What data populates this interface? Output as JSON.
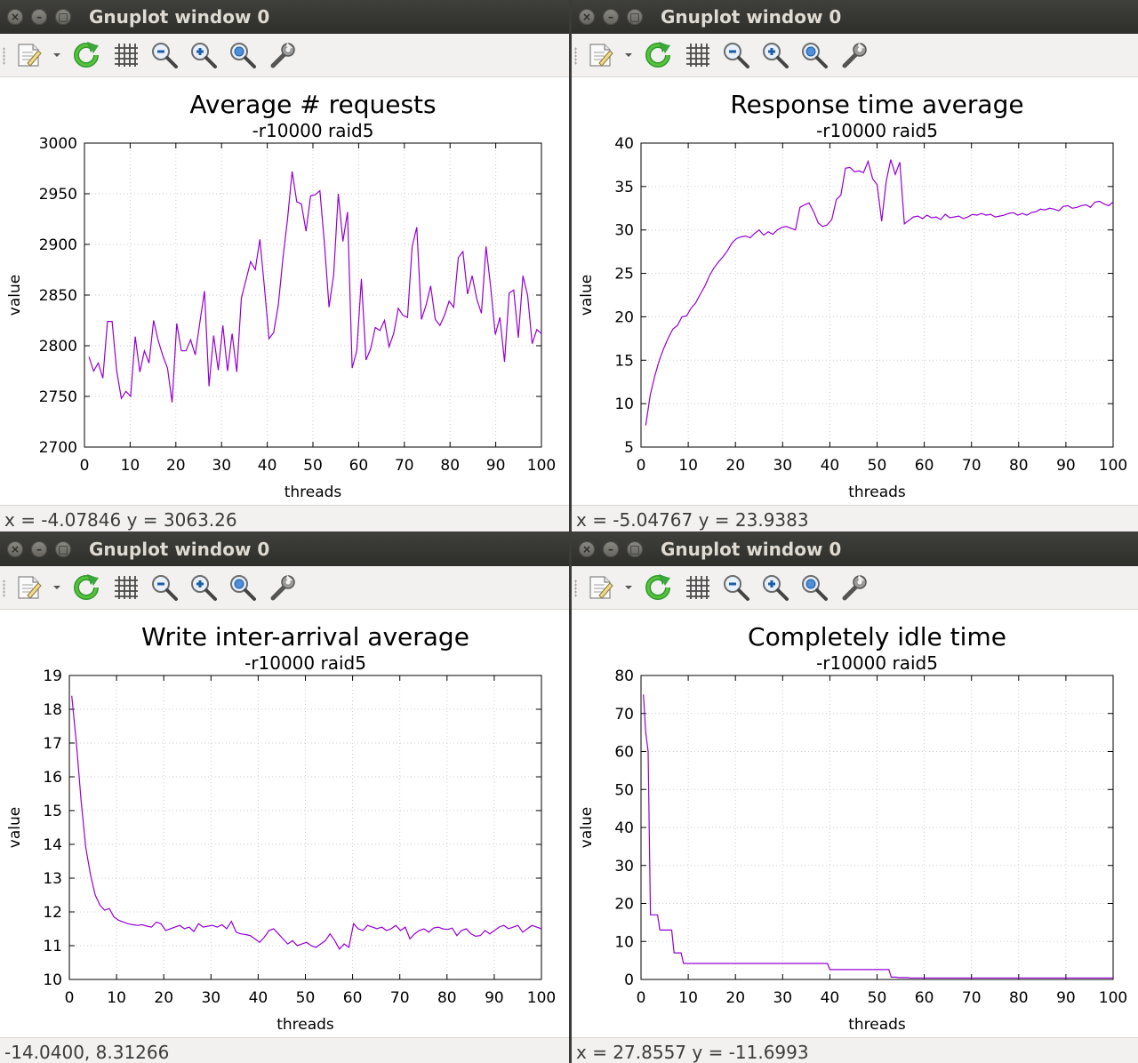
{
  "colors": {
    "series": "#9400d3",
    "grid": "#cfcfcf",
    "titlebar": "#3a3a37",
    "toolbar": "#f2f1f0"
  },
  "toolbar_icons": [
    "export-icon",
    "dropdown-arrow-icon",
    "replot-icon",
    "grid-icon",
    "zoom-out-icon",
    "zoom-in-icon",
    "zoom-reset-icon",
    "settings-icon"
  ],
  "windows": [
    {
      "title": "Gnuplot window 0",
      "status": "x = -4.07846 y = 3063.26",
      "chart_data": {
        "type": "line",
        "title": "Average # requests",
        "subtitle": "-r10000 raid5",
        "xlabel": "threads",
        "ylabel": "value",
        "xlim": [
          0,
          100
        ],
        "ylim": [
          2700,
          3000
        ],
        "xticks": [
          "0",
          "10",
          "20",
          "30",
          "40",
          "50",
          "60",
          "70",
          "80",
          "90",
          "100"
        ],
        "yticks": [
          "2700",
          "2750",
          "2800",
          "2850",
          "2900",
          "2950",
          "3000"
        ],
        "grid": true,
        "x_start": 1,
        "series": [
          {
            "values": [
              2789,
              2775,
              2783,
              2768,
              2824,
              2824,
              2775,
              2748,
              2755,
              2750,
              2809,
              2774,
              2795,
              2783,
              2825,
              2805,
              2790,
              2778,
              2744,
              2822,
              2795,
              2795,
              2806,
              2791,
              2823,
              2854,
              2760,
              2810,
              2776,
              2820,
              2775,
              2812,
              2774,
              2847,
              2865,
              2883,
              2875,
              2905,
              2857,
              2807,
              2813,
              2840,
              2886,
              2925,
              2972,
              2942,
              2940,
              2913,
              2948,
              2949,
              2953,
              2900,
              2838,
              2870,
              2950,
              2903,
              2932,
              2778,
              2795,
              2866,
              2786,
              2797,
              2818,
              2815,
              2825,
              2799,
              2812,
              2837,
              2830,
              2828,
              2898,
              2917,
              2826,
              2840,
              2859,
              2826,
              2820,
              2830,
              2844,
              2838,
              2887,
              2893,
              2851,
              2869,
              2846,
              2832,
              2898,
              2858,
              2811,
              2828,
              2784,
              2852,
              2855,
              2808,
              2869,
              2850,
              2802,
              2816,
              2812
            ]
          }
        ]
      }
    },
    {
      "title": "Gnuplot window 0",
      "status": "x = -5.04767 y = 23.9383",
      "chart_data": {
        "type": "line",
        "title": "Response time average",
        "subtitle": "-r10000 raid5",
        "xlabel": "threads",
        "ylabel": "value",
        "xlim": [
          0,
          100
        ],
        "ylim": [
          5,
          40
        ],
        "xticks": [
          "0",
          "10",
          "20",
          "30",
          "40",
          "50",
          "60",
          "70",
          "80",
          "90",
          "100"
        ],
        "yticks": [
          "5",
          "10",
          "15",
          "20",
          "25",
          "30",
          "35",
          "40"
        ],
        "grid": true,
        "x_start": 1,
        "series": [
          {
            "values": [
              7.5,
              11.0,
              13.2,
              15.0,
              16.4,
              17.6,
              18.6,
              19.0,
              20.0,
              20.1,
              21.0,
              21.6,
              22.6,
              23.5,
              24.7,
              25.6,
              26.3,
              26.9,
              27.6,
              28.5,
              29.0,
              29.2,
              29.3,
              29.1,
              29.6,
              30.0,
              29.4,
              29.8,
              29.5,
              30.0,
              30.3,
              30.4,
              30.2,
              30.0,
              32.6,
              32.9,
              33.1,
              32.1,
              30.8,
              30.4,
              30.6,
              31.2,
              33.5,
              34.0,
              37.1,
              37.2,
              36.7,
              36.8,
              36.6,
              37.9,
              35.9,
              35.2,
              31.0,
              35.6,
              38.1,
              36.4,
              37.8,
              30.7,
              31.1,
              31.5,
              31.6,
              31.3,
              31.7,
              31.4,
              31.5,
              31.2,
              31.8,
              31.4,
              31.5,
              31.6,
              31.3,
              31.5,
              31.8,
              31.7,
              31.9,
              31.7,
              31.8,
              31.5,
              31.6,
              31.7,
              31.9,
              32.0,
              31.7,
              31.9,
              31.7,
              32.0,
              32.1,
              32.4,
              32.3,
              32.5,
              32.4,
              32.2,
              32.7,
              32.8,
              32.5,
              32.6,
              32.8,
              32.9,
              32.6,
              33.2,
              33.3,
              33.0,
              32.8,
              33.2
            ]
          }
        ]
      }
    },
    {
      "title": "Gnuplot window 0",
      "status": "-14.0400,  8.31266",
      "chart_data": {
        "type": "line",
        "title": "Write inter-arrival average",
        "subtitle": "-r10000 raid5",
        "xlabel": "threads",
        "ylabel": "value",
        "xlim": [
          0,
          100
        ],
        "ylim": [
          10,
          19
        ],
        "xticks": [
          "0",
          "10",
          "20",
          "30",
          "40",
          "50",
          "60",
          "70",
          "80",
          "90",
          "100"
        ],
        "yticks": [
          "10",
          "11",
          "12",
          "13",
          "14",
          "15",
          "16",
          "17",
          "18",
          "19"
        ],
        "grid": true,
        "x_start": 0.5,
        "series": [
          {
            "values": [
              18.4,
              17.0,
              15.3,
              13.9,
              13.1,
              12.5,
              12.2,
              12.05,
              12.1,
              11.85,
              11.75,
              11.7,
              11.65,
              11.62,
              11.6,
              11.62,
              11.58,
              11.55,
              11.7,
              11.65,
              11.45,
              11.5,
              11.55,
              11.6,
              11.5,
              11.55,
              11.42,
              11.65,
              11.55,
              11.58,
              11.6,
              11.55,
              11.62,
              11.5,
              11.72,
              11.4,
              11.35,
              11.33,
              11.3,
              11.2,
              11.1,
              11.25,
              11.45,
              11.5,
              11.35,
              11.2,
              11.05,
              11.15,
              11.0,
              11.05,
              11.1,
              11.0,
              10.95,
              11.05,
              11.15,
              11.35,
              11.15,
              10.9,
              11.05,
              10.95,
              11.65,
              11.5,
              11.45,
              11.6,
              11.55,
              11.5,
              11.55,
              11.45,
              11.5,
              11.6,
              11.45,
              11.55,
              11.2,
              11.35,
              11.45,
              11.5,
              11.4,
              11.52,
              11.55,
              11.5,
              11.48,
              11.52,
              11.3,
              11.45,
              11.5,
              11.35,
              11.28,
              11.3,
              11.45,
              11.35,
              11.45,
              11.55,
              11.6,
              11.5,
              11.55,
              11.6,
              11.4,
              11.5,
              11.6,
              11.55,
              11.5
            ]
          }
        ]
      }
    },
    {
      "title": "Gnuplot window 0",
      "status": "x = 27.8557 y = -11.6993",
      "chart_data": {
        "type": "line",
        "title": "Completely idle time",
        "subtitle": "-r10000 raid5",
        "xlabel": "threads",
        "ylabel": "value",
        "xlim": [
          0,
          100
        ],
        "ylim": [
          0,
          80
        ],
        "xticks": [
          "0",
          "10",
          "20",
          "30",
          "40",
          "50",
          "60",
          "70",
          "80",
          "90",
          "100"
        ],
        "yticks": [
          "0",
          "10",
          "20",
          "30",
          "40",
          "50",
          "60",
          "70",
          "80"
        ],
        "grid": true,
        "x_start": 0.5,
        "series": [
          {
            "values": [
              75,
              65,
              60,
              17,
              17,
              17,
              17,
              13,
              13,
              13,
              13,
              13,
              13,
              7,
              7,
              7,
              7,
              4.2,
              4.2,
              4.2,
              4.2,
              4.2,
              4.2,
              4.2,
              4.2,
              4.2,
              4.2,
              4.2,
              4.2,
              4.2,
              4.2,
              4.2,
              4.2,
              4.2,
              4.2,
              4.2,
              4.2,
              4.2,
              4.2,
              4.2,
              4.2,
              4.2,
              4.2,
              4.2,
              4.2,
              4.2,
              4.2,
              4.2,
              4.2,
              4.2,
              4.2,
              4.2,
              4.2,
              4.2,
              4.2,
              4.2,
              4.2,
              4.2,
              4.2,
              4.2,
              4.2,
              4.2,
              4.2,
              4.2,
              4.2,
              4.2,
              4.2,
              4.2,
              4.2,
              4.2,
              4.2,
              4.2,
              4.2,
              4.2,
              4.2,
              4.2,
              4.2,
              4.2,
              4.2,
              2.6,
              2.6,
              2.6,
              2.6,
              2.6,
              2.6,
              2.6,
              2.6,
              2.6,
              2.6,
              2.6,
              2.6,
              2.6,
              2.6,
              2.6,
              2.6,
              2.6,
              2.6,
              2.6,
              2.6,
              2.6,
              2.6,
              2.6,
              2.6,
              2.6,
              2.6,
              0.6,
              0.6,
              0.6,
              0.5,
              0.5,
              0.5,
              0.5,
              0.5,
              0.4,
              0.4,
              0.4,
              0.4,
              0.4,
              0.4,
              0.4,
              0.4,
              0.4,
              0.4,
              0.4,
              0.4,
              0.4,
              0.4,
              0.4,
              0.4,
              0.4,
              0.4,
              0.4,
              0.4,
              0.4,
              0.4,
              0.4,
              0.4,
              0.4,
              0.4,
              0.4,
              0.4,
              0.4,
              0.4,
              0.4,
              0.4,
              0.4,
              0.4,
              0.4,
              0.4,
              0.4,
              0.4,
              0.4,
              0.4,
              0.4,
              0.4,
              0.4,
              0.4,
              0.4,
              0.4,
              0.4,
              0.4,
              0.4,
              0.4,
              0.4,
              0.4,
              0.4,
              0.4,
              0.4,
              0.4,
              0.4,
              0.4,
              0.4,
              0.4,
              0.4,
              0.4,
              0.4,
              0.4,
              0.4,
              0.4,
              0.4,
              0.4,
              0.4,
              0.4,
              0.4,
              0.4,
              0.4,
              0.4,
              0.4,
              0.4,
              0.4,
              0.4,
              0.4,
              0.4,
              0.4,
              0.4,
              0.4,
              0.4,
              0.4,
              0.4,
              0.4,
              0.4,
              0.4,
              0.4,
              0.4,
              0.4,
              0.4
            ],
            "x_step": 0.5
          }
        ]
      }
    }
  ]
}
